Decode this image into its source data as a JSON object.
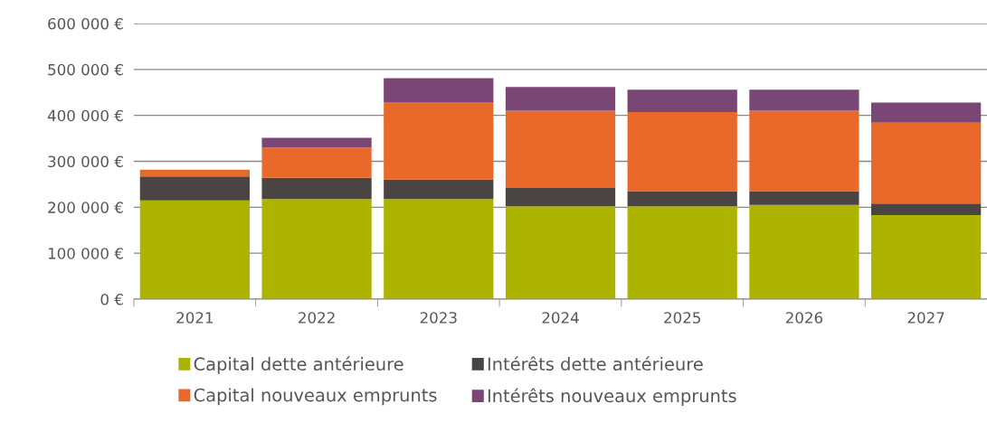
{
  "chart_data": {
    "type": "bar",
    "stacked": true,
    "categories": [
      "2021",
      "2022",
      "2023",
      "2024",
      "2025",
      "2026",
      "2027"
    ],
    "series": [
      {
        "name": "Capital dette antérieure",
        "color": "#acb400",
        "values": [
          215000,
          218000,
          218000,
          202000,
          202000,
          205000,
          183000
        ]
      },
      {
        "name": "Intérêts dette antérieure",
        "color": "#4a4443",
        "values": [
          52000,
          46000,
          42000,
          40000,
          33000,
          30000,
          25000
        ]
      },
      {
        "name": "Capital nouveaux emprunts",
        "color": "#e8692a",
        "values": [
          15000,
          66000,
          169000,
          168000,
          172000,
          175000,
          176000
        ]
      },
      {
        "name": "Intérêts nouveaux emprunts",
        "color": "#7a4675",
        "values": [
          0,
          21000,
          52000,
          52000,
          49000,
          46000,
          44000
        ]
      }
    ],
    "ylim": [
      0,
      600000
    ],
    "yticks": [
      {
        "value": 0,
        "label": "0 €"
      },
      {
        "value": 100000,
        "label": "100 000 €"
      },
      {
        "value": 200000,
        "label": "200 000 €"
      },
      {
        "value": 300000,
        "label": "300 000 €"
      },
      {
        "value": 400000,
        "label": "400 000 €"
      },
      {
        "value": 500000,
        "label": "500 000 €"
      },
      {
        "value": 600000,
        "label": "600 000 €"
      }
    ],
    "grid": "y",
    "legend": "bottom"
  }
}
